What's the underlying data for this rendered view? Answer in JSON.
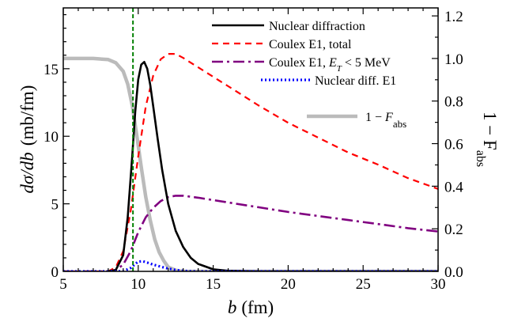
{
  "chart_data": {
    "type": "line",
    "xlabel": {
      "var": "b",
      "unit": "(fm)"
    },
    "ylabel": {
      "var": "dσ/db",
      "unit": "(mb/fm)"
    },
    "y2label": {
      "main": "1 − F",
      "sub": "abs"
    },
    "xlim": [
      5,
      30
    ],
    "ylim": [
      0,
      19.5
    ],
    "y2lim": [
      0,
      1.2375
    ],
    "xticks": [
      "5",
      "10",
      "15",
      "20",
      "25",
      "30"
    ],
    "yticks": [
      "0",
      "5",
      "10",
      "15"
    ],
    "y2ticks": [
      "0.0",
      "0.2",
      "0.4",
      "0.6",
      "0.8",
      "1.0",
      "1.2"
    ],
    "grid": false,
    "legend_position": "top-right",
    "vline": {
      "x": 9.65,
      "color": "#008000"
    },
    "series": [
      {
        "name": "Nuclear diffraction",
        "axis": "left",
        "color": "#000000",
        "dash": "solid",
        "x": [
          8.0,
          8.5,
          9.0,
          9.3,
          9.6,
          9.8,
          10.0,
          10.2,
          10.4,
          10.6,
          10.8,
          11.0,
          11.3,
          11.6,
          12.0,
          12.5,
          13.0,
          13.5,
          14.0,
          15.0,
          16.0,
          18.0,
          30.0
        ],
        "values": [
          0,
          0.1,
          1.2,
          4.0,
          8.5,
          11.8,
          14.2,
          15.3,
          15.5,
          15.0,
          13.8,
          12.2,
          9.8,
          7.5,
          5.0,
          3.0,
          1.8,
          1.0,
          0.55,
          0.15,
          0.04,
          0,
          0
        ]
      },
      {
        "name": "Coulex E1, total",
        "axis": "left",
        "color": "#ff0000",
        "dash": "8,6",
        "x": [
          5,
          8.0,
          8.5,
          9.0,
          9.5,
          10.0,
          10.5,
          11.0,
          11.5,
          12.0,
          12.5,
          13.0,
          14.0,
          16.0,
          18.0,
          20.0,
          22.0,
          24.0,
          26.0,
          28.0,
          30.0
        ],
        "values": [
          0,
          0,
          0.3,
          1.5,
          4.5,
          8.5,
          12.2,
          14.5,
          15.7,
          16.1,
          16.1,
          15.8,
          15.1,
          13.7,
          12.3,
          11.0,
          9.9,
          8.8,
          7.9,
          6.9,
          6.1
        ]
      },
      {
        "name": "Coulex E1, E_T < 5 MeV",
        "axis": "left",
        "color": "#800080",
        "dash": "14,5,3,5",
        "x": [
          5,
          8.0,
          8.5,
          9.0,
          9.5,
          10.0,
          10.5,
          11.0,
          11.5,
          12.0,
          12.5,
          13.0,
          14.0,
          16.0,
          18.0,
          20.0,
          22.0,
          24.0,
          26.0,
          28.0,
          30.0
        ],
        "values": [
          0,
          0,
          0.1,
          0.5,
          1.5,
          2.9,
          4.0,
          4.7,
          5.2,
          5.5,
          5.6,
          5.6,
          5.45,
          5.1,
          4.75,
          4.4,
          4.1,
          3.8,
          3.5,
          3.2,
          2.95
        ]
      },
      {
        "name": "Nuclear diff. E1",
        "axis": "left",
        "color": "#0000ff",
        "dash": "2,3",
        "x": [
          5,
          8.5,
          9.0,
          9.5,
          9.8,
          10.0,
          10.3,
          10.6,
          11.0,
          11.5,
          12.0,
          12.5,
          13.0,
          13.5,
          14.0,
          30.0
        ],
        "values": [
          0,
          0,
          0.02,
          0.25,
          0.55,
          0.72,
          0.75,
          0.65,
          0.5,
          0.35,
          0.2,
          0.1,
          0.04,
          0.01,
          0,
          0
        ]
      },
      {
        "name": "1 − F_abs",
        "axis": "right",
        "color": "#bbbbbb",
        "dash": "solid",
        "x": [
          5,
          7.0,
          8.0,
          8.5,
          9.0,
          9.3,
          9.6,
          9.9,
          10.2,
          10.5,
          10.8,
          11.1,
          11.4,
          11.7,
          12.0,
          12.5,
          13.0,
          30.0
        ],
        "values": [
          1.0,
          1.0,
          0.995,
          0.98,
          0.94,
          0.88,
          0.78,
          0.64,
          0.49,
          0.35,
          0.24,
          0.15,
          0.09,
          0.05,
          0.02,
          0.005,
          0,
          0
        ]
      }
    ]
  }
}
